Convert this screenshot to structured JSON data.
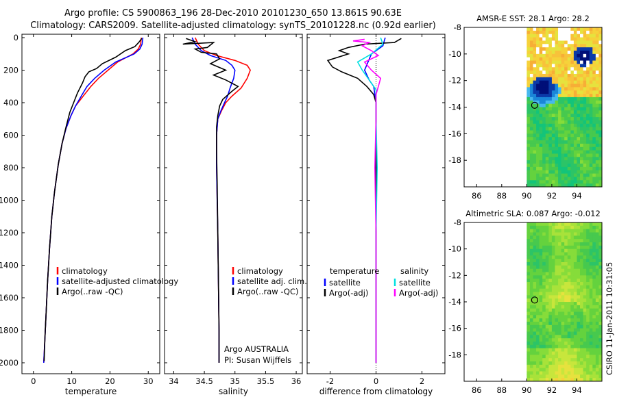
{
  "title": {
    "line1": "Argo profile: CS 5900863_196 28-Dec-2010 20101230_650 13.861S 90.63E",
    "line2": "Climatology: CARS2009. Satellite-adjusted climatology: synTS_20101228.nc (0.92d earlier)"
  },
  "credit": "CSIRO 11-Jan-2011 10:31:05",
  "colors": {
    "climatology": "#ff0000",
    "satellite": "#0000ff",
    "argo": "#000000",
    "sal_satellite": "#00e0e0",
    "sal_argo": "#ff00ff",
    "land_white": "#ffffff"
  },
  "chart_data": [
    {
      "type": "line",
      "xlabel": "temperature",
      "ylabel": "",
      "xlim": [
        -3,
        33
      ],
      "ylim": [
        2080,
        0
      ],
      "xticks": [
        "0",
        "10",
        "20",
        "30"
      ],
      "yticks": [
        "0",
        "200",
        "400",
        "600",
        "800",
        "1000",
        "1200",
        "1400",
        "1600",
        "1800",
        "2000"
      ],
      "legend": [
        "climatology",
        "satellite-adjusted climatology",
        "Argo(..raw -QC)"
      ],
      "legend_placement": "lower-right",
      "series": [
        {
          "name": "climatology",
          "color": "#ff0000",
          "points": [
            [
              28.2,
              0
            ],
            [
              28.0,
              40
            ],
            [
              27.4,
              70
            ],
            [
              26.0,
              100
            ],
            [
              22.0,
              150
            ],
            [
              19.5,
              200
            ],
            [
              17.0,
              250
            ],
            [
              15.0,
              300
            ],
            [
              13.0,
              360
            ],
            [
              11.0,
              420
            ],
            [
              9.8,
              480
            ],
            [
              8.5,
              560
            ],
            [
              7.5,
              650
            ],
            [
              6.5,
              780
            ],
            [
              5.5,
              950
            ],
            [
              4.8,
              1100
            ],
            [
              4.2,
              1300
            ],
            [
              3.7,
              1500
            ],
            [
              3.3,
              1700
            ],
            [
              3.0,
              1850
            ],
            [
              2.7,
              2000
            ]
          ]
        },
        {
          "name": "satellite-adjusted climatology",
          "color": "#0000ff",
          "points": [
            [
              28.6,
              0
            ],
            [
              28.4,
              40
            ],
            [
              27.8,
              70
            ],
            [
              26.3,
              100
            ],
            [
              21.5,
              150
            ],
            [
              18.5,
              200
            ],
            [
              16.0,
              250
            ],
            [
              14.0,
              300
            ],
            [
              12.5,
              360
            ],
            [
              11.0,
              420
            ],
            [
              9.8,
              480
            ],
            [
              8.5,
              560
            ],
            [
              7.5,
              650
            ],
            [
              6.5,
              780
            ],
            [
              5.5,
              950
            ],
            [
              4.8,
              1100
            ],
            [
              4.2,
              1300
            ],
            [
              3.7,
              1500
            ],
            [
              3.3,
              1700
            ],
            [
              3.0,
              1850
            ],
            [
              2.7,
              2000
            ]
          ]
        },
        {
          "name": "Argo(..raw -QC)",
          "color": "#000000",
          "points": [
            [
              28.3,
              5
            ],
            [
              27.5,
              30
            ],
            [
              26.5,
              55
            ],
            [
              24.0,
              80
            ],
            [
              21.5,
              120
            ],
            [
              18.0,
              160
            ],
            [
              16.5,
              190
            ],
            [
              14.5,
              210
            ],
            [
              13.5,
              240
            ],
            [
              12.8,
              280
            ],
            [
              11.5,
              340
            ],
            [
              10.5,
              400
            ],
            [
              9.5,
              460
            ],
            [
              8.4,
              560
            ],
            [
              7.5,
              650
            ],
            [
              6.5,
              780
            ],
            [
              5.5,
              950
            ],
            [
              4.8,
              1100
            ],
            [
              4.2,
              1300
            ],
            [
              3.7,
              1500
            ],
            [
              3.3,
              1700
            ],
            [
              3.0,
              1850
            ],
            [
              2.8,
              1990
            ]
          ]
        }
      ]
    },
    {
      "type": "line",
      "xlabel": "salinity",
      "ylabel": "",
      "xlim": [
        33.85,
        36.1
      ],
      "ylim": [
        2080,
        0
      ],
      "xticks": [
        "34",
        "34.5",
        "35",
        "35.5",
        "36"
      ],
      "yticks": [],
      "legend": [
        "climatology",
        "satellite adj. clim.",
        "Argo(..raw -QC)"
      ],
      "legend_placement": "lower-right",
      "annotations": [
        "Argo AUSTRALIA",
        "PI: Susan Wijffels"
      ],
      "series": [
        {
          "name": "climatology",
          "color": "#ff0000",
          "points": [
            [
              34.35,
              0
            ],
            [
              34.4,
              40
            ],
            [
              34.5,
              80
            ],
            [
              34.7,
              110
            ],
            [
              35.0,
              140
            ],
            [
              35.2,
              170
            ],
            [
              35.25,
              200
            ],
            [
              35.2,
              250
            ],
            [
              35.1,
              310
            ],
            [
              34.95,
              360
            ],
            [
              34.85,
              400
            ],
            [
              34.78,
              450
            ],
            [
              34.72,
              500
            ],
            [
              34.7,
              600
            ],
            [
              34.7,
              800
            ],
            [
              34.71,
              1000
            ],
            [
              34.72,
              1200
            ],
            [
              34.73,
              1500
            ],
            [
              34.74,
              1800
            ],
            [
              34.74,
              2000
            ]
          ]
        },
        {
          "name": "satellite adj. clim.",
          "color": "#0000ff",
          "points": [
            [
              34.3,
              0
            ],
            [
              34.35,
              40
            ],
            [
              34.45,
              80
            ],
            [
              34.6,
              110
            ],
            [
              34.85,
              140
            ],
            [
              34.95,
              170
            ],
            [
              35.0,
              200
            ],
            [
              34.98,
              250
            ],
            [
              34.92,
              310
            ],
            [
              34.88,
              360
            ],
            [
              34.83,
              400
            ],
            [
              34.77,
              450
            ],
            [
              34.72,
              500
            ],
            [
              34.7,
              600
            ],
            [
              34.7,
              800
            ],
            [
              34.71,
              1000
            ],
            [
              34.72,
              1200
            ],
            [
              34.73,
              1500
            ],
            [
              34.74,
              1800
            ],
            [
              34.74,
              2000
            ]
          ]
        },
        {
          "name": "Argo(..raw -QC)",
          "color": "#000000",
          "points": [
            [
              34.2,
              5
            ],
            [
              34.35,
              25
            ],
            [
              34.15,
              40
            ],
            [
              34.65,
              30
            ],
            [
              34.55,
              60
            ],
            [
              34.35,
              70
            ],
            [
              34.45,
              90
            ],
            [
              34.7,
              100
            ],
            [
              34.75,
              130
            ],
            [
              34.6,
              160
            ],
            [
              34.85,
              200
            ],
            [
              34.65,
              230
            ],
            [
              34.85,
              260
            ],
            [
              35.05,
              300
            ],
            [
              34.95,
              330
            ],
            [
              34.8,
              380
            ],
            [
              34.75,
              420
            ],
            [
              34.72,
              480
            ],
            [
              34.7,
              550
            ],
            [
              34.7,
              700
            ],
            [
              34.71,
              900
            ],
            [
              34.72,
              1200
            ],
            [
              34.73,
              1500
            ],
            [
              34.74,
              1800
            ],
            [
              34.74,
              2000
            ]
          ]
        }
      ]
    },
    {
      "type": "line",
      "xlabel": "difference from climatology",
      "ylabel": "",
      "xlim": [
        -3,
        3
      ],
      "ylim": [
        2080,
        0
      ],
      "xticks": [
        "-2",
        "0",
        "2"
      ],
      "yticks": [],
      "legend": [
        "temperature",
        "satellite",
        "Argo(-adj)",
        "salinity",
        "satellite",
        "Argo(-adj)"
      ],
      "legend_placement": "lower-center",
      "series": [
        {
          "name": "temperature satellite",
          "color": "#0000ff",
          "points": [
            [
              0.4,
              0
            ],
            [
              0.3,
              50
            ],
            [
              -0.2,
              100
            ],
            [
              -0.5,
              200
            ],
            [
              -0.3,
              260
            ],
            [
              -0.1,
              300
            ],
            [
              0.0,
              400
            ],
            [
              0.0,
              600
            ],
            [
              0.0,
              1000
            ],
            [
              0.0,
              1500
            ],
            [
              0.0,
              2000
            ]
          ]
        },
        {
          "name": "temperature Argo(-adj)",
          "color": "#000000",
          "points": [
            [
              1.1,
              5
            ],
            [
              0.8,
              30
            ],
            [
              -0.5,
              40
            ],
            [
              -1.2,
              60
            ],
            [
              -1.6,
              80
            ],
            [
              -1.2,
              100
            ],
            [
              -2.1,
              140
            ],
            [
              -1.9,
              180
            ],
            [
              -1.5,
              210
            ],
            [
              -0.8,
              250
            ],
            [
              -0.4,
              300
            ],
            [
              -0.1,
              350
            ],
            [
              0.0,
              400
            ],
            [
              0.0,
              600
            ],
            [
              0.0,
              1000
            ],
            [
              0.0,
              1500
            ],
            [
              0.0,
              2000
            ]
          ]
        },
        {
          "name": "salinity satellite",
          "color": "#00e0e0",
          "points": [
            [
              0.2,
              0
            ],
            [
              0.3,
              40
            ],
            [
              -0.2,
              100
            ],
            [
              -0.8,
              150
            ],
            [
              -0.6,
              200
            ],
            [
              -0.3,
              260
            ],
            [
              0.0,
              320
            ],
            [
              0.0,
              500
            ],
            [
              0.05,
              800
            ],
            [
              0.0,
              1200
            ],
            [
              0.0,
              1600
            ],
            [
              0.0,
              2000
            ]
          ]
        },
        {
          "name": "salinity Argo(-adj)",
          "color": "#ff00ff",
          "points": [
            [
              -0.5,
              10
            ],
            [
              -1.0,
              20
            ],
            [
              -0.3,
              30
            ],
            [
              -0.6,
              50
            ],
            [
              -0.2,
              80
            ],
            [
              0.1,
              110
            ],
            [
              -0.5,
              150
            ],
            [
              -0.2,
              200
            ],
            [
              0.2,
              250
            ],
            [
              0.1,
              300
            ],
            [
              0.0,
              350
            ],
            [
              0.0,
              500
            ],
            [
              -0.05,
              800
            ],
            [
              0.0,
              1200
            ],
            [
              0.0,
              1600
            ],
            [
              0.0,
              2000
            ]
          ]
        }
      ]
    },
    {
      "type": "heatmap",
      "title": "AMSR-E SST: 28.1 Argo: 28.2",
      "xlim": [
        85,
        96
      ],
      "ylim": [
        -20,
        -8
      ],
      "xticks": [
        "86",
        "88",
        "90",
        "92",
        "94"
      ],
      "yticks": [
        "-8",
        "-10",
        "-12",
        "-14",
        "-16",
        "-18"
      ],
      "marker": {
        "lon": 90.63,
        "lat": -13.861
      },
      "data_lon_range": [
        90,
        96
      ],
      "colors": [
        "#13c47a",
        "#2cc467",
        "#47c94e",
        "#64d23e",
        "#86dc3a",
        "#a8e23a",
        "#c8e63c",
        "#e6e23e",
        "#f6d23a",
        "#f8c23a",
        "#f7ae36",
        "#f59a34",
        "#46b8ee",
        "#1a86d8",
        "#0b3aa8",
        "#000f78"
      ]
    },
    {
      "type": "heatmap",
      "title": "Altimetric SLA: 0.087 Argo: -0.012",
      "xlim": [
        85,
        96
      ],
      "ylim": [
        -20,
        -8
      ],
      "xticks": [
        "86",
        "88",
        "90",
        "92",
        "94"
      ],
      "yticks": [
        "-8",
        "-10",
        "-12",
        "-14",
        "-16",
        "-18"
      ],
      "marker": {
        "lon": 90.63,
        "lat": -13.861
      },
      "data_lon_range": [
        90,
        96
      ],
      "colors": [
        "#13c47a",
        "#2cc467",
        "#47c94e",
        "#64d23e",
        "#86dc3a",
        "#a8e23a",
        "#c8e63c",
        "#e6e23e",
        "#f6d23a",
        "#f8c23a"
      ]
    }
  ]
}
